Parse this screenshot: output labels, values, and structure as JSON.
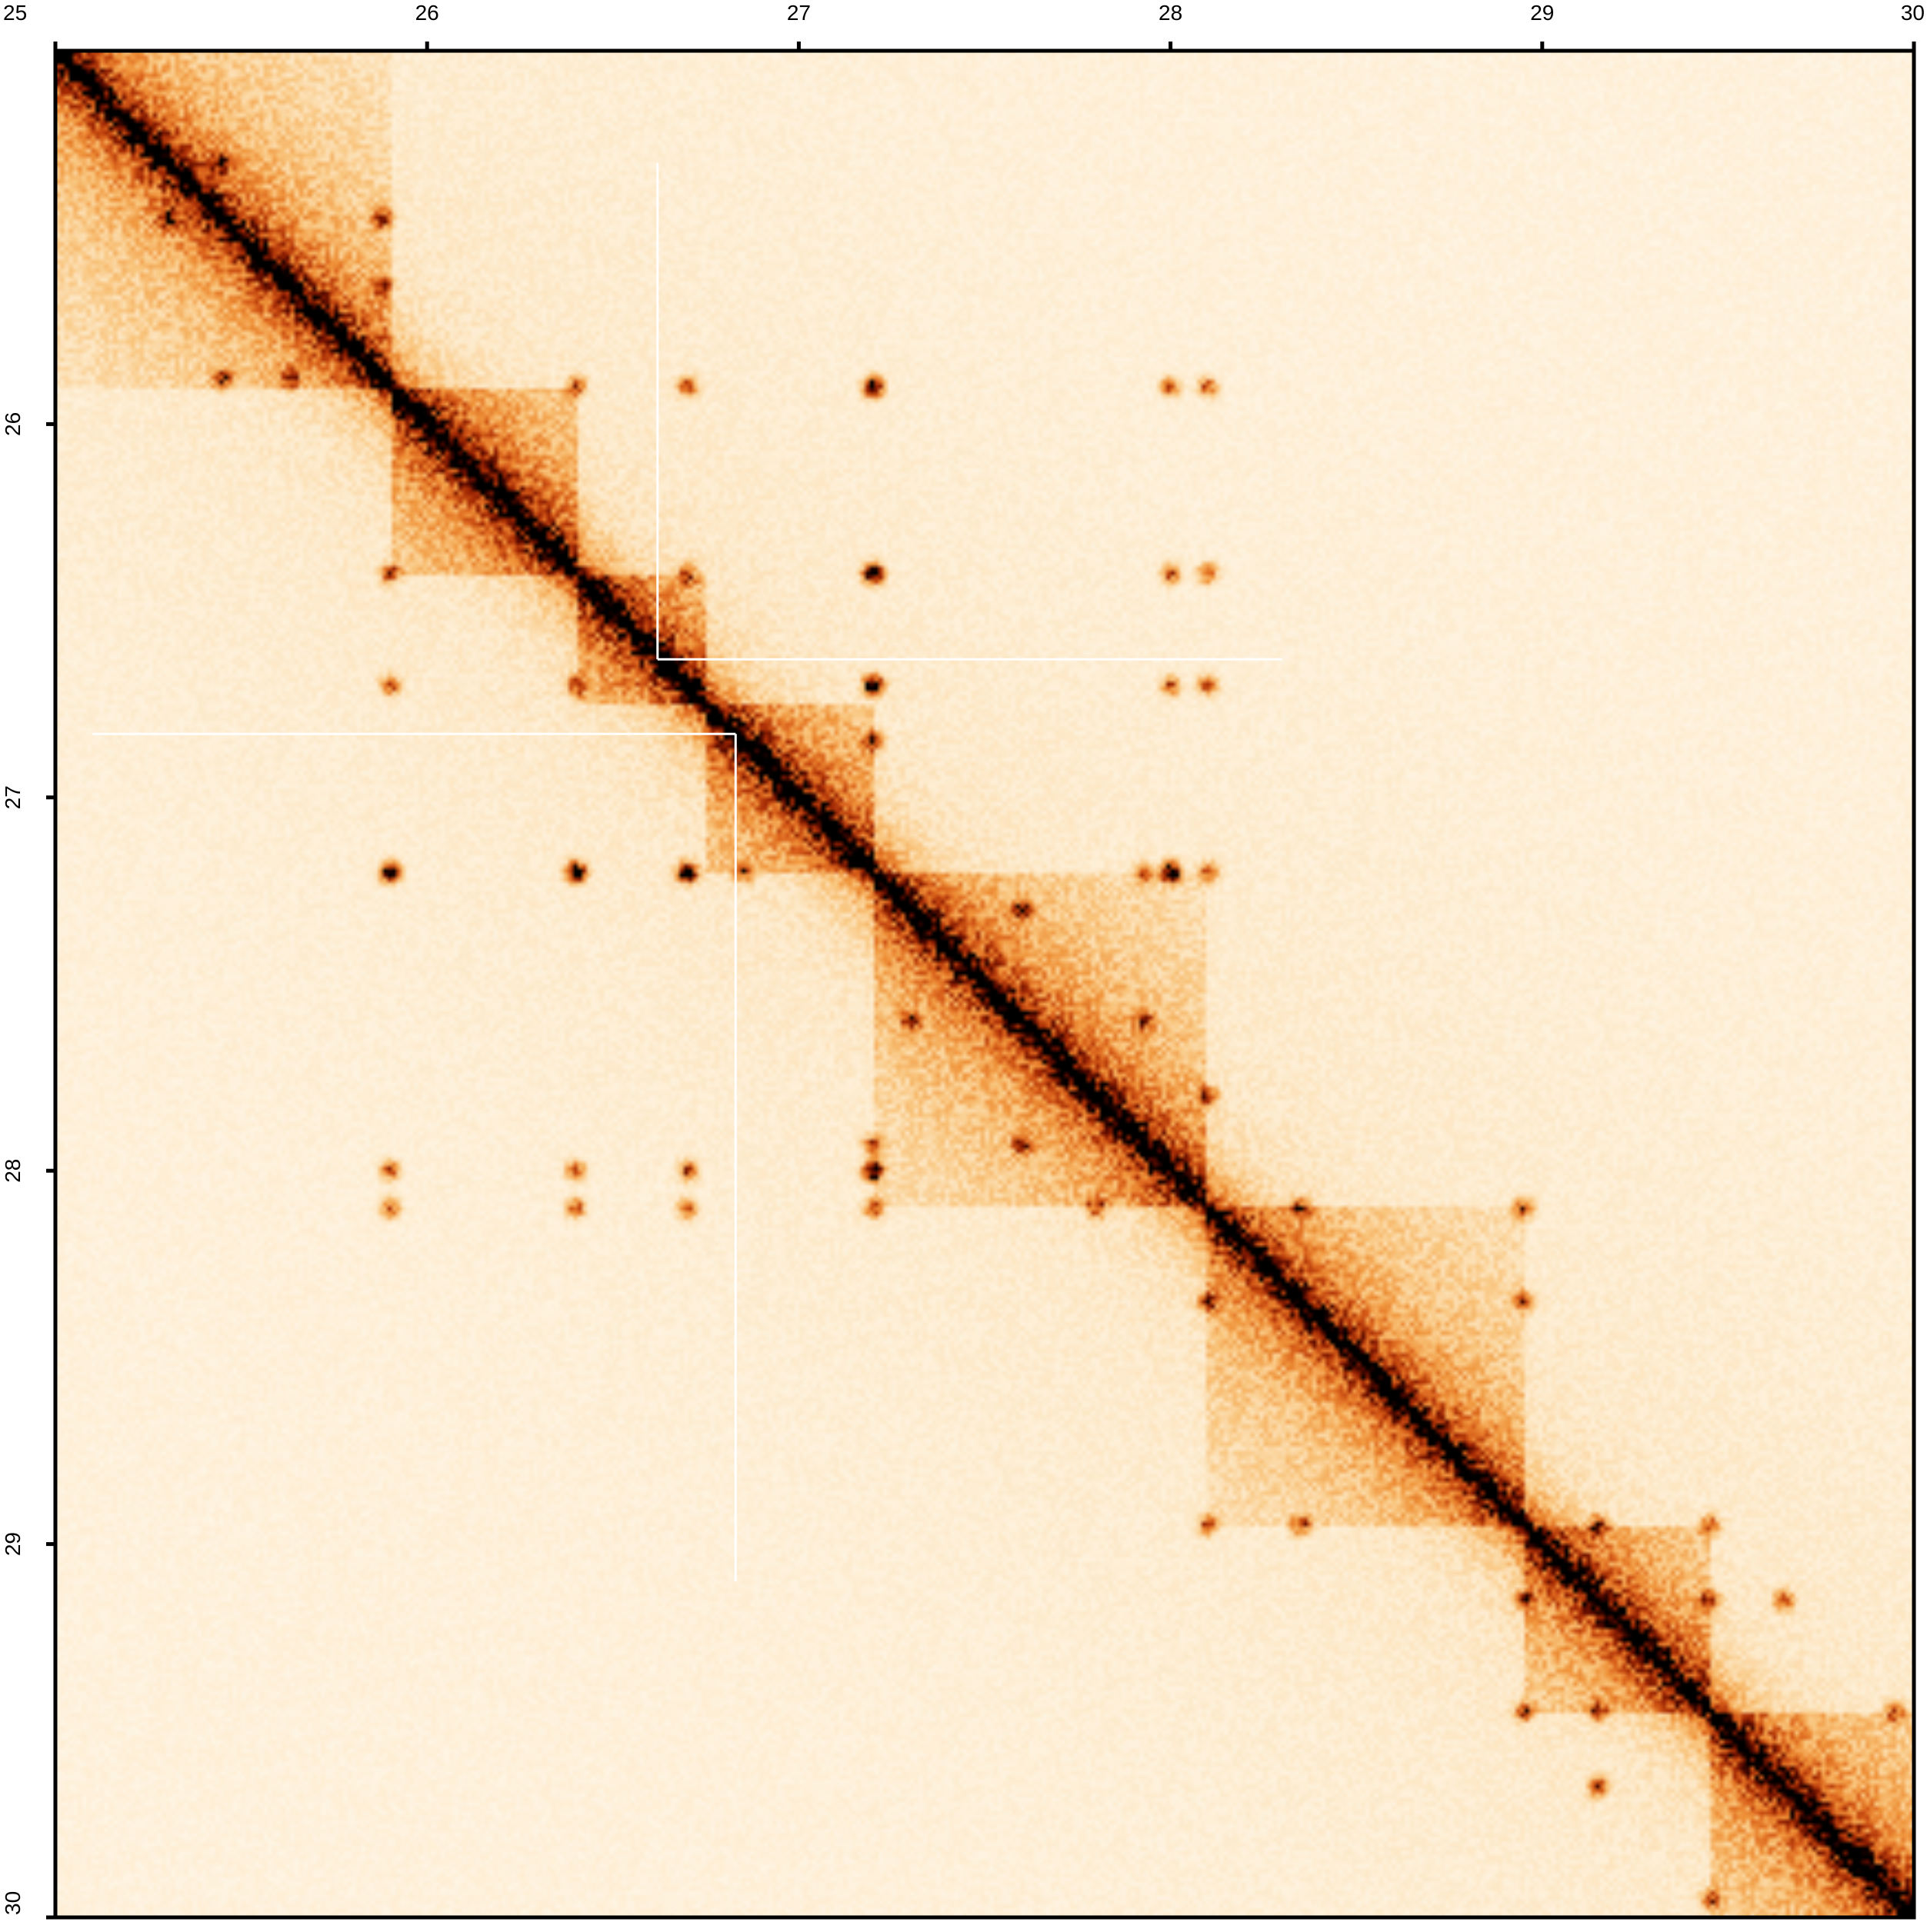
{
  "chart_data": {
    "type": "heatmap",
    "title": "",
    "xlabel": "",
    "ylabel": "",
    "xlim": [
      25,
      30
    ],
    "ylim": [
      25,
      30
    ],
    "y_inverted": true,
    "x_axis_position": "top",
    "y_axis_position": "left",
    "x_ticks": [
      "25",
      "26",
      "27",
      "28",
      "29",
      "30"
    ],
    "y_ticks": [
      "26",
      "27",
      "28",
      "29",
      "30"
    ],
    "colormap": [
      "#fffcf4",
      "#fde7c4",
      "#f9c57d",
      "#f0953c",
      "#d9601a",
      "#a52a05",
      "#5a0a00",
      "#000000"
    ],
    "grid": false,
    "legend": "none",
    "domains": [
      {
        "start": 25.0,
        "end": 25.9,
        "intensity": 0.55
      },
      {
        "start": 25.9,
        "end": 26.4,
        "intensity": 0.65
      },
      {
        "start": 26.4,
        "end": 26.75,
        "intensity": 0.62
      },
      {
        "start": 26.75,
        "end": 27.2,
        "intensity": 0.62
      },
      {
        "start": 27.2,
        "end": 28.1,
        "intensity": 0.6
      },
      {
        "start": 28.1,
        "end": 28.95,
        "intensity": 0.55
      },
      {
        "start": 28.95,
        "end": 29.45,
        "intensity": 0.58
      },
      {
        "start": 29.45,
        "end": 30.0,
        "intensity": 0.6
      }
    ],
    "loops": [
      [
        25.45,
        25.88
      ],
      [
        25.63,
        25.88
      ],
      [
        25.3,
        25.45
      ],
      [
        25.9,
        26.4
      ],
      [
        25.9,
        26.7
      ],
      [
        26.4,
        26.7
      ],
      [
        25.9,
        27.2
      ],
      [
        26.7,
        27.2
      ],
      [
        26.4,
        27.2
      ],
      [
        26.7,
        27.2
      ],
      [
        25.9,
        27.2
      ],
      [
        26.4,
        27.2
      ],
      [
        26.85,
        27.2
      ],
      [
        27.2,
        27.93
      ],
      [
        27.2,
        28.0
      ],
      [
        27.6,
        27.93
      ],
      [
        27.8,
        28.1
      ],
      [
        27.3,
        27.6
      ],
      [
        28.1,
        28.95
      ],
      [
        28.35,
        28.95
      ],
      [
        28.1,
        28.35
      ],
      [
        28.95,
        29.45
      ],
      [
        29.15,
        29.45
      ],
      [
        28.95,
        29.15
      ],
      [
        29.45,
        29.95
      ],
      [
        29.15,
        29.65
      ],
      [
        25.9,
        28.0
      ],
      [
        26.4,
        28.0
      ],
      [
        26.7,
        28.0
      ],
      [
        27.2,
        28.0
      ],
      [
        26.4,
        28.1
      ],
      [
        26.7,
        28.1
      ],
      [
        27.2,
        28.1
      ],
      [
        25.9,
        28.1
      ]
    ],
    "annotations": [
      {
        "kind": "white-boundary",
        "x1": 26.62,
        "y1": 25.3,
        "x2": 26.62,
        "y2": 26.63
      },
      {
        "kind": "white-boundary",
        "x1": 26.62,
        "y1": 26.63,
        "x2": 28.3,
        "y2": 26.63
      },
      {
        "kind": "white-boundary",
        "x1": 25.1,
        "y1": 26.83,
        "x2": 26.83,
        "y2": 26.83
      },
      {
        "kind": "white-boundary",
        "x1": 26.83,
        "y1": 26.83,
        "x2": 26.83,
        "y2": 29.1
      }
    ]
  }
}
